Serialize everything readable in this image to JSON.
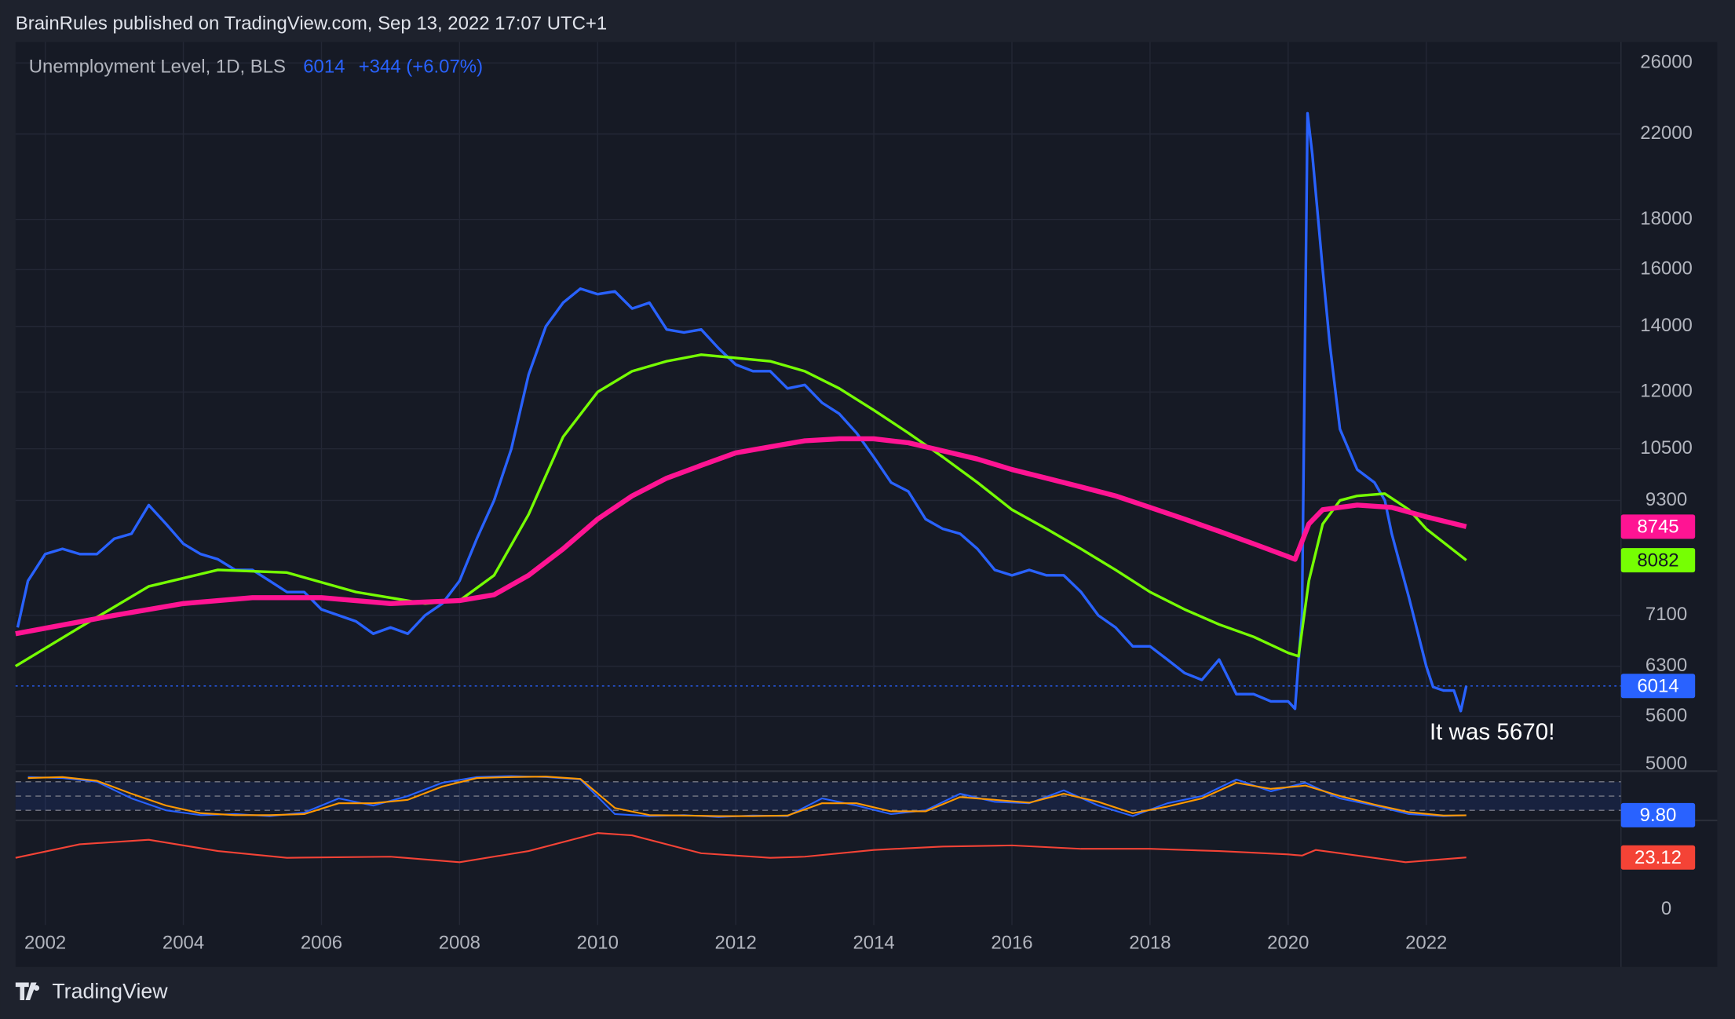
{
  "header": "BrainRules published on TradingView.com, Sep 13, 2022 17:07 UTC+1",
  "footer": "TradingView",
  "chart_data": [
    {
      "type": "line",
      "legend_title": "Unemployment Level, 1D, BLS",
      "change": "+344 (+6.07%)",
      "annotation": "It was 5670!",
      "log_scale": true,
      "grid": true,
      "xlim": [
        2001.57,
        2024.82
      ],
      "xticks": [
        2002,
        2004,
        2006,
        2008,
        2010,
        2012,
        2014,
        2016,
        2018,
        2020,
        2022
      ],
      "ylim": [
        4923,
        27310
      ],
      "yticks": [
        5000,
        5600,
        6300,
        7100,
        9300,
        10500,
        12000,
        14000,
        16000,
        18000,
        22000,
        26000
      ],
      "series": [
        {
          "name": "Unemployment Level, 1D, BLS",
          "color": "#2962ff",
          "badge": true,
          "price_line": true,
          "x": [
            2001.6,
            2001.75,
            2002.0,
            2002.25,
            2002.5,
            2002.75,
            2003.0,
            2003.25,
            2003.5,
            2003.75,
            2004.0,
            2004.25,
            2004.5,
            2004.75,
            2005.0,
            2005.25,
            2005.5,
            2005.75,
            2006.0,
            2006.25,
            2006.5,
            2006.75,
            2007.0,
            2007.25,
            2007.5,
            2007.75,
            2008.0,
            2008.25,
            2008.5,
            2008.75,
            2009.0,
            2009.25,
            2009.5,
            2009.75,
            2010.0,
            2010.25,
            2010.5,
            2010.75,
            2011.0,
            2011.25,
            2011.5,
            2011.75,
            2012.0,
            2012.25,
            2012.5,
            2012.75,
            2013.0,
            2013.25,
            2013.5,
            2013.75,
            2014.0,
            2014.25,
            2014.5,
            2014.75,
            2015.0,
            2015.25,
            2015.5,
            2015.75,
            2016.0,
            2016.25,
            2016.5,
            2016.75,
            2017.0,
            2017.25,
            2017.5,
            2017.75,
            2018.0,
            2018.25,
            2018.5,
            2018.75,
            2019.0,
            2019.25,
            2019.5,
            2019.75,
            2020.0,
            2020.1,
            2020.2,
            2020.28,
            2020.35,
            2020.5,
            2020.6,
            2020.75,
            2021.0,
            2021.25,
            2021.4,
            2021.5,
            2021.75,
            2022.0,
            2022.1,
            2022.25,
            2022.4,
            2022.5,
            2022.58
          ],
          "values": [
            6900,
            7700,
            8200,
            8300,
            8200,
            8200,
            8500,
            8600,
            9200,
            8800,
            8400,
            8200,
            8100,
            7900,
            7900,
            7700,
            7500,
            7500,
            7200,
            7100,
            7000,
            6800,
            6900,
            6800,
            7100,
            7300,
            7700,
            8500,
            9300,
            10500,
            12500,
            14000,
            14800,
            15300,
            15100,
            15200,
            14600,
            14800,
            13900,
            13800,
            13900,
            13300,
            12800,
            12600,
            12600,
            12100,
            12200,
            11700,
            11400,
            10900,
            10300,
            9700,
            9500,
            8900,
            8700,
            8600,
            8300,
            7900,
            7800,
            7900,
            7800,
            7800,
            7500,
            7100,
            6900,
            6600,
            6600,
            6400,
            6200,
            6100,
            6400,
            5900,
            5900,
            5800,
            5800,
            5700,
            7100,
            23100,
            21000,
            16000,
            13500,
            11000,
            10000,
            9700,
            9300,
            8600,
            7400,
            6300,
            6000,
            5950,
            5950,
            5670,
            6014
          ]
        },
        {
          "color": "#76ff03",
          "badge": true,
          "x": [
            2001.57,
            2002.5,
            2003.5,
            2004.5,
            2005.5,
            2006.5,
            2007.5,
            2008.0,
            2008.5,
            2009.0,
            2009.5,
            2010.0,
            2010.5,
            2011.0,
            2011.5,
            2012.0,
            2012.5,
            2013.0,
            2013.5,
            2014.0,
            2014.5,
            2015.0,
            2015.5,
            2016.0,
            2016.5,
            2017.0,
            2017.5,
            2018.0,
            2018.5,
            2019.0,
            2019.5,
            2020.0,
            2020.15,
            2020.3,
            2020.5,
            2020.75,
            2021.0,
            2021.4,
            2021.75,
            2022.0,
            2022.58
          ],
          "values": [
            6300,
            6900,
            7600,
            7900,
            7850,
            7500,
            7300,
            7350,
            7800,
            9000,
            10800,
            12000,
            12600,
            12900,
            13100,
            13000,
            12900,
            12600,
            12100,
            11500,
            10900,
            10300,
            9700,
            9100,
            8700,
            8300,
            7900,
            7500,
            7200,
            6950,
            6750,
            6500,
            6450,
            7700,
            8800,
            9300,
            9400,
            9450,
            9100,
            8700,
            8082
          ]
        },
        {
          "color": "#ff1493",
          "badge": true,
          "x": [
            2001.57,
            2003,
            2004,
            2005,
            2006,
            2007,
            2008,
            2008.5,
            2009,
            2009.5,
            2010,
            2010.5,
            2011,
            2011.5,
            2012,
            2012.5,
            2013,
            2013.5,
            2014,
            2014.5,
            2015,
            2015.5,
            2016,
            2016.5,
            2017,
            2017.5,
            2018,
            2018.5,
            2019,
            2019.5,
            2020,
            2020.1,
            2020.3,
            2020.5,
            2021,
            2021.5,
            2022,
            2022.58
          ],
          "values": [
            6800,
            7100,
            7300,
            7400,
            7400,
            7300,
            7350,
            7450,
            7800,
            8300,
            8900,
            9400,
            9800,
            10100,
            10400,
            10550,
            10700,
            10750,
            10750,
            10650,
            10450,
            10250,
            10000,
            9800,
            9600,
            9400,
            9150,
            8900,
            8650,
            8400,
            8150,
            8100,
            8800,
            9100,
            9200,
            9150,
            8950,
            8745
          ]
        }
      ]
    },
    {
      "type": "line",
      "ylim": [
        0,
        100
      ],
      "bands": [
        80,
        50,
        20
      ],
      "series": [
        {
          "color": "#2962ff",
          "badge": true,
          "x": [
            2001.75,
            2002.25,
            2002.75,
            2003.25,
            2003.75,
            2004.25,
            2004.75,
            2005.25,
            2005.75,
            2006.25,
            2006.75,
            2007.25,
            2007.75,
            2008.25,
            2008.75,
            2009.25,
            2009.75,
            2010.25,
            2010.75,
            2011.25,
            2011.75,
            2012.25,
            2012.75,
            2013.25,
            2013.75,
            2014.25,
            2014.75,
            2015.25,
            2015.75,
            2016.25,
            2016.75,
            2017.25,
            2017.75,
            2018.25,
            2018.75,
            2019.25,
            2019.75,
            2020.25,
            2020.75,
            2021.25,
            2021.75,
            2022.25,
            2022.58
          ],
          "values": [
            90,
            88,
            80,
            45,
            20,
            10,
            12,
            8,
            15,
            45,
            30,
            50,
            78,
            90,
            92,
            90,
            85,
            12,
            8,
            10,
            6,
            9,
            8,
            45,
            30,
            12,
            20,
            55,
            38,
            35,
            62,
            30,
            8,
            35,
            50,
            85,
            60,
            78,
            45,
            30,
            12,
            8,
            9.8
          ],
          "value_labels": [
            null,
            null,
            null,
            null,
            null,
            null,
            null,
            null,
            null,
            null,
            null,
            null,
            null,
            null,
            null,
            null,
            null,
            null,
            null,
            null,
            null,
            null,
            null,
            null,
            null,
            null,
            null,
            null,
            null,
            null,
            null,
            null,
            null,
            null,
            null,
            null,
            null,
            null,
            null,
            null,
            null,
            null,
            "9.80"
          ]
        },
        {
          "color": "#ff9800",
          "x": [
            2001.75,
            2002.25,
            2002.75,
            2003.25,
            2003.75,
            2004.25,
            2004.75,
            2005.25,
            2005.75,
            2006.25,
            2006.75,
            2007.25,
            2007.75,
            2008.25,
            2008.75,
            2009.25,
            2009.75,
            2010.25,
            2010.75,
            2011.25,
            2011.75,
            2012.25,
            2012.75,
            2013.25,
            2013.75,
            2014.25,
            2014.75,
            2015.25,
            2015.75,
            2016.25,
            2016.75,
            2017.25,
            2017.75,
            2018.25,
            2018.75,
            2019.25,
            2019.75,
            2020.25,
            2020.75,
            2021.25,
            2021.75,
            2022.25,
            2022.58
          ],
          "values": [
            88,
            90,
            82,
            55,
            30,
            14,
            10,
            10,
            12,
            35,
            35,
            42,
            70,
            88,
            90,
            91,
            86,
            25,
            10,
            9,
            8,
            8,
            9,
            35,
            35,
            18,
            18,
            48,
            42,
            36,
            55,
            38,
            14,
            28,
            45,
            78,
            65,
            72,
            50,
            32,
            16,
            9,
            9.5
          ]
        }
      ]
    },
    {
      "type": "line",
      "ylim": [
        -6.9,
        38.9
      ],
      "yticks": [
        0
      ],
      "series": [
        {
          "color": "#f44336",
          "badge": true,
          "x": [
            2001.57,
            2002.5,
            2003.5,
            2004.5,
            2005.5,
            2007,
            2008,
            2009,
            2010,
            2010.5,
            2011.5,
            2012.5,
            2013,
            2014,
            2015,
            2016,
            2017,
            2018,
            2019,
            2020.0,
            2020.2,
            2020.4,
            2021,
            2021.7,
            2022.58
          ],
          "values": [
            23,
            29,
            31,
            26,
            23,
            23.5,
            21,
            26,
            34,
            33,
            25,
            23,
            23.5,
            26.5,
            28,
            28.5,
            27,
            27,
            26,
            24.5,
            24,
            26.5,
            24,
            21,
            23.12
          ]
        }
      ]
    }
  ]
}
